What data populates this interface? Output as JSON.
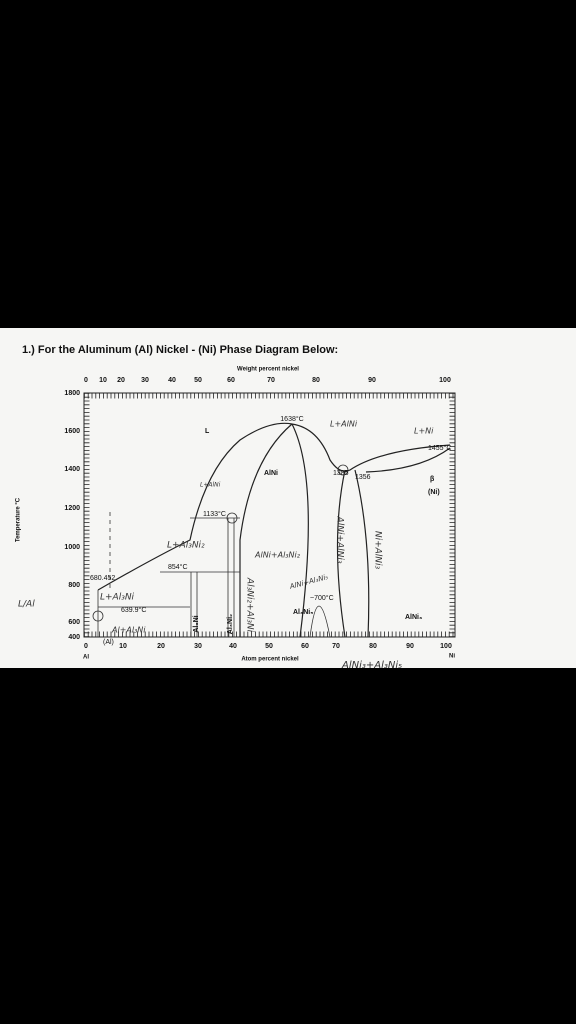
{
  "question": "1.) For the Aluminum (Al) Nickel - (Ni) Phase Diagram Below:",
  "diagram": {
    "top_axis_title": "Weight percent nickel",
    "top_ticks": [
      "0",
      "10",
      "20",
      "30",
      "40",
      "50",
      "60",
      "70",
      "80",
      "90",
      "100"
    ],
    "left_axis_title": "Temperature °C",
    "left_ticks": [
      "1800",
      "1600",
      "1400",
      "1200",
      "1000",
      "800",
      "600",
      "400"
    ],
    "bottom_ticks": [
      "0",
      "10",
      "20",
      "30",
      "40",
      "50",
      "60",
      "70",
      "80",
      "90",
      "100"
    ],
    "bottom_axis_title": "Atom percent nickel",
    "left_element": "Al",
    "right_element": "Ni",
    "labels": {
      "t1638": "1638°C",
      "liquid": "L",
      "l_alni_hand": "L+AlNi",
      "l_ni_hand": "L+Ni",
      "t1455": "1455°C",
      "alni": "AlNi",
      "t1385": "1385",
      "t1356": "1356",
      "beta": "β",
      "ni": "(Ni)",
      "l_alni_small": "L+AlNi",
      "t1133": "1133°C",
      "l_al3ni2_hand": "L+Al₃Ni₂",
      "t854": "854°C",
      "alni_al3ni2_hand": "AlNi+Al₃Ni₂",
      "t680": "680.452",
      "l_al3ni_hand": "L+Al₃Ni",
      "t639": "639.9°C",
      "al_al3ni_hand": "Al+Al₃Ni",
      "al_phase": "(Al)",
      "al3ni": "Al₃Ni",
      "al3ni2": "Al₃Ni₂",
      "al3ni2_al3ni_hand": "Al₃Ni₂+Al₃Ni",
      "alni_al3ni5_hand": "AlNi+Al₃Ni₅",
      "t700": "~700°C",
      "al3ni5": "Al₃Ni₅",
      "alni3": "AlNi₃",
      "alni_alni3_hand": "AlNi+AlNi₃",
      "ni_alni3_hand": "Ni+AlNi₃",
      "l_al_hand": "L/Al",
      "alni3_al3ni5_hand": "AlNi₃+Al₃Ni₅"
    }
  }
}
